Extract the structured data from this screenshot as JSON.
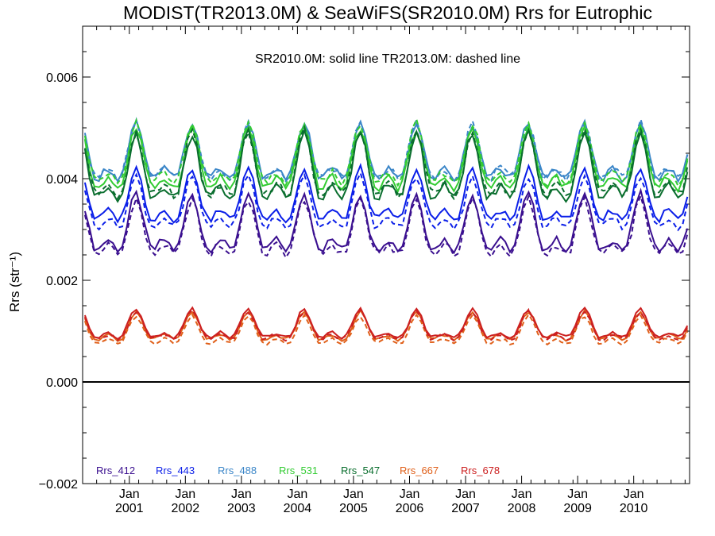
{
  "chart_data": {
    "type": "line",
    "title": "MODIST(TR2013.0M) & SeaWiFS(SR2010.0M)  Rrs for Eutrophic",
    "annotation": "SR2010.0M: solid line   TR2013.0M: dashed line",
    "ylabel": "Rrs (str⁻¹)",
    "ylim": [
      -0.002,
      0.007
    ],
    "xlim": [
      2000.0,
      2010.83
    ],
    "yticks": [
      -0.002,
      0.0,
      0.002,
      0.004,
      0.006
    ],
    "ytick_labels": [
      "−0.002",
      "0.000",
      "0.002",
      "0.004",
      "0.006"
    ],
    "x_major_ticks": [
      2000.833,
      2001.833,
      2002.833,
      2003.833,
      2004.833,
      2005.833,
      2006.833,
      2007.833,
      2008.833,
      2009.833
    ],
    "x_tick_labels": [
      {
        "line1": "Jan",
        "line2": "2001"
      },
      {
        "line1": "Jan",
        "line2": "2002"
      },
      {
        "line1": "Jan",
        "line2": "2003"
      },
      {
        "line1": "Jan",
        "line2": "2004"
      },
      {
        "line1": "Jan",
        "line2": "2005"
      },
      {
        "line1": "Jan",
        "line2": "2006"
      },
      {
        "line1": "Jan",
        "line2": "2007"
      },
      {
        "line1": "Jan",
        "line2": "2008"
      },
      {
        "line1": "Jan",
        "line2": "2009"
      },
      {
        "line1": "Jan",
        "line2": "2010"
      }
    ],
    "grid": false,
    "legend_position": "bottom-left",
    "line_styles": {
      "solid": "SR2010.0M",
      "dashed": "TR2013.0M"
    },
    "series": [
      {
        "name": "Rrs_412",
        "color": "#3a0f8f",
        "peak": 0.0037,
        "trough": 0.0025,
        "offset": -0.0001
      },
      {
        "name": "Rrs_443",
        "color": "#0a1ee8",
        "peak": 0.0042,
        "trough": 0.0031,
        "offset": -0.00015
      },
      {
        "name": "Rrs_488",
        "color": "#3b86c8",
        "peak": 0.0051,
        "trough": 0.0039,
        "offset": 0.0
      },
      {
        "name": "Rrs_531",
        "color": "#33cc33",
        "peak": 0.005,
        "trough": 0.0037,
        "offset": 0.0001
      },
      {
        "name": "Rrs_547",
        "color": "#0a6e2e",
        "peak": 0.0049,
        "trough": 0.0035,
        "offset": 5e-05
      },
      {
        "name": "Rrs_667",
        "color": "#e0601a",
        "peak": 0.00138,
        "trough": 0.00078,
        "offset": -8e-05
      },
      {
        "name": "Rrs_678",
        "color": "#cc2020",
        "peak": 0.00143,
        "trough": 0.00082,
        "offset": -4e-05
      }
    ]
  }
}
